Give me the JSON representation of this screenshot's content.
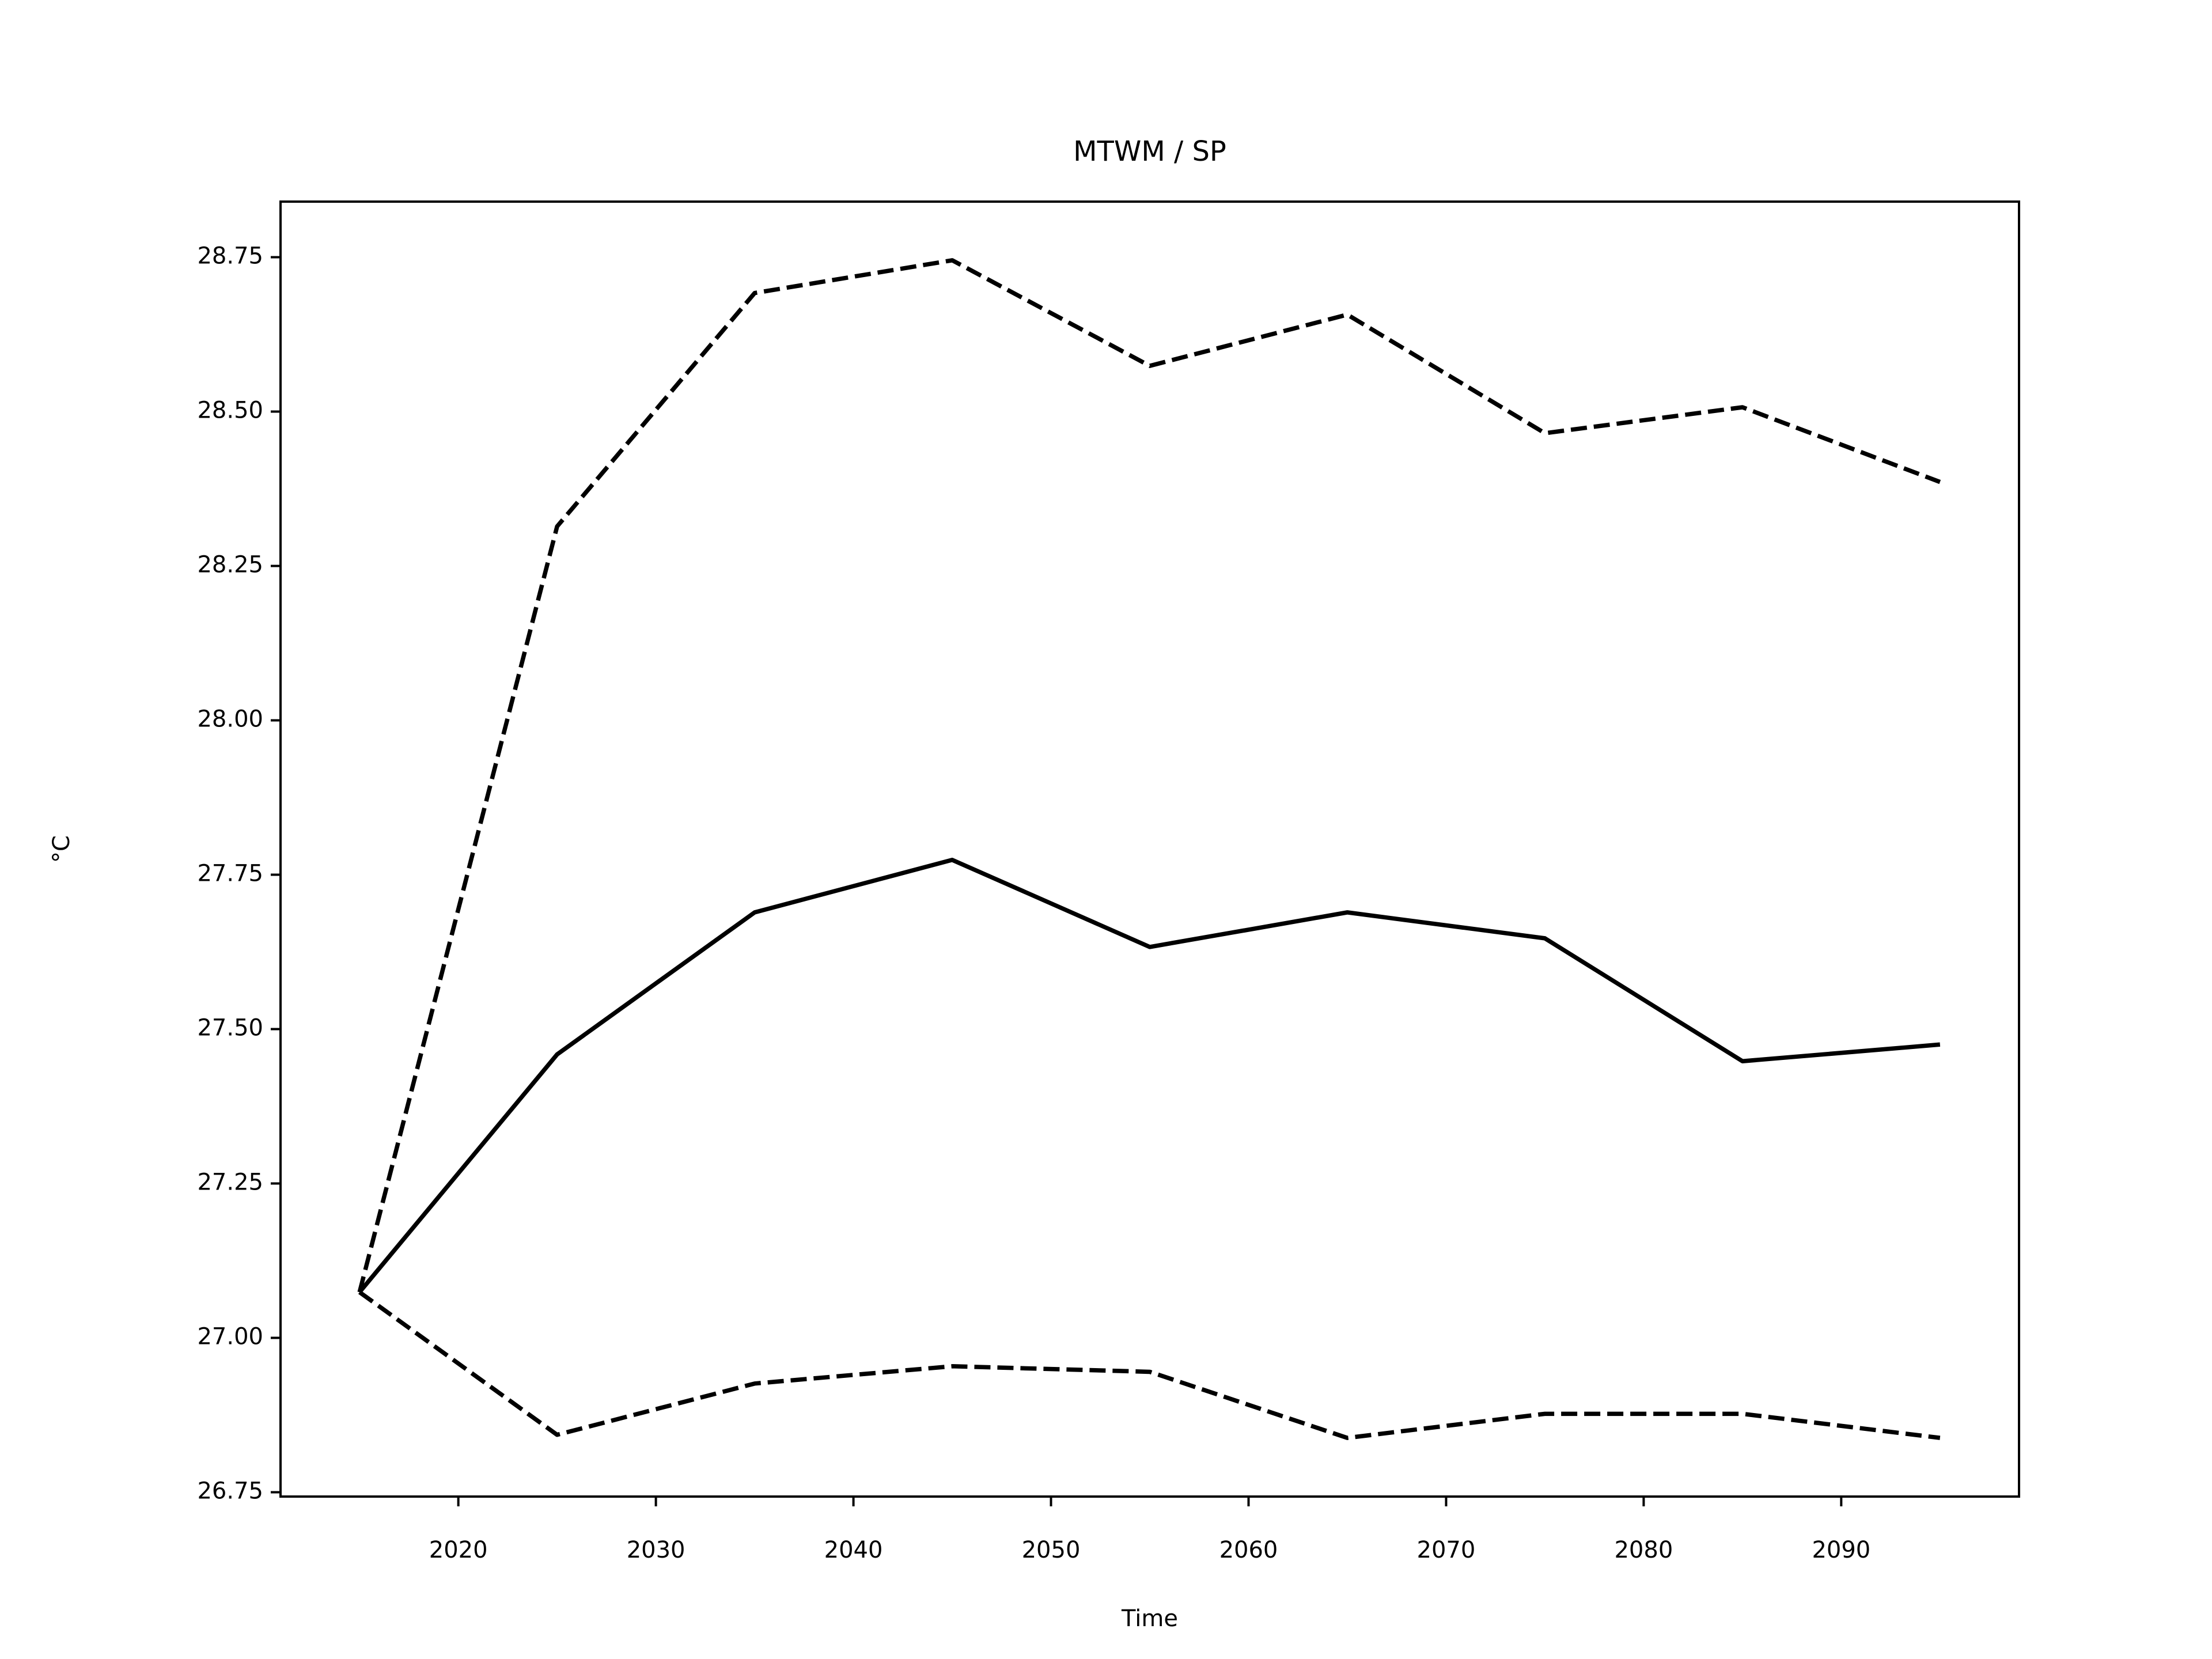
{
  "chart_data": {
    "type": "line",
    "title": "MTWM / SP",
    "x_label": "Time",
    "y_label": "°C",
    "x": [
      2015,
      2025,
      2035,
      2045,
      2055,
      2065,
      2075,
      2085,
      2095
    ],
    "series": [
      {
        "color": "#000000",
        "linestyle": "solid",
        "values": [
          27.074,
          27.459,
          27.689,
          27.774,
          27.633,
          27.689,
          27.647,
          27.448,
          27.475
        ]
      },
      {
        "color": "#000000",
        "linestyle": "dashed",
        "values": [
          27.074,
          28.314,
          28.692,
          28.745,
          28.574,
          28.657,
          28.465,
          28.507,
          28.386
        ]
      },
      {
        "color": "#000000",
        "linestyle": "dashed",
        "values": [
          27.074,
          26.843,
          26.926,
          26.954,
          26.945,
          26.838,
          26.877,
          26.877,
          26.838
        ]
      }
    ],
    "xlim": [
      2011,
      2099
    ],
    "xticks": [
      2020,
      2030,
      2040,
      2050,
      2060,
      2070,
      2080,
      2090
    ],
    "ylim": [
      26.743,
      28.84
    ],
    "yticks": [
      {
        "value": 26.75,
        "label": "26.75"
      },
      {
        "value": 27.0,
        "label": "27.00"
      },
      {
        "value": 27.25,
        "label": "27.25"
      },
      {
        "value": 27.5,
        "label": "27.50"
      },
      {
        "value": 27.75,
        "label": "27.75"
      },
      {
        "value": 28.0,
        "label": "28.00"
      },
      {
        "value": 28.25,
        "label": "28.25"
      },
      {
        "value": 28.5,
        "label": "28.50"
      },
      {
        "value": 28.75,
        "label": "28.75"
      }
    ],
    "grid": false
  }
}
